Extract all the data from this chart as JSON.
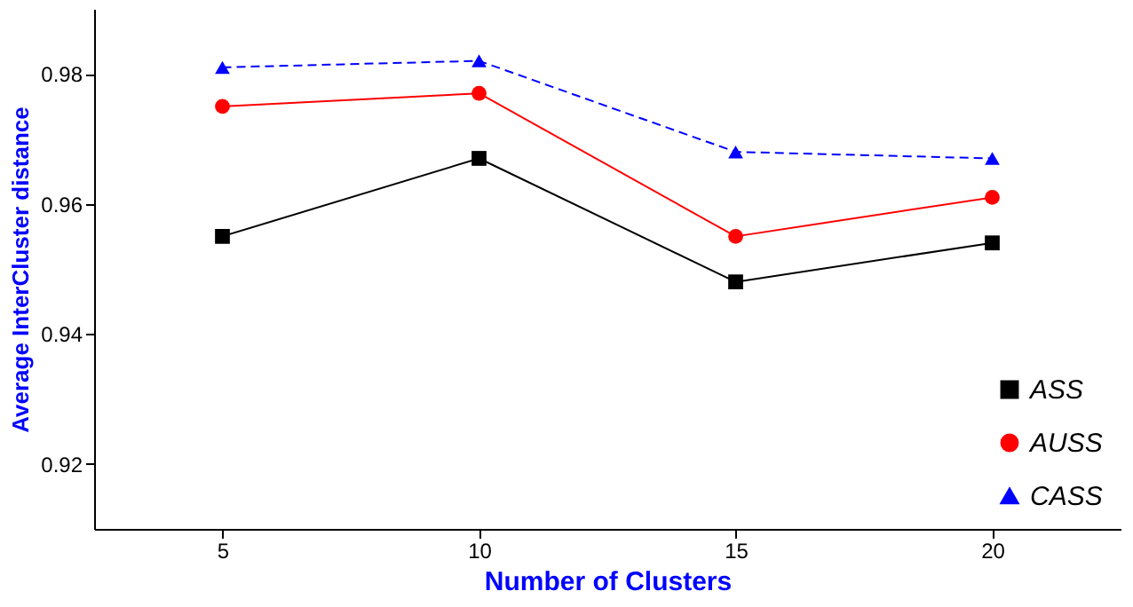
{
  "chart_data": {
    "type": "line",
    "xlabel": "Number of Clusters",
    "ylabel": "Average InterCluster distance",
    "categories": [
      "5",
      "10",
      "15",
      "20"
    ],
    "series": [
      {
        "name": "ASS",
        "color": "#000000",
        "values": [
          0.955,
          0.967,
          0.948,
          0.954
        ],
        "marker": "square",
        "line_style": "solid"
      },
      {
        "name": "AUSS",
        "color": "#ff0000",
        "values": [
          0.975,
          0.977,
          0.955,
          0.961
        ],
        "marker": "circle",
        "line_style": "solid"
      },
      {
        "name": "CASS",
        "color": "#0000ff",
        "values": [
          0.981,
          0.982,
          0.968,
          0.967
        ],
        "marker": "triangle",
        "line_style": "dashed"
      }
    ],
    "ylim": [
      0.91,
      0.99
    ],
    "yticks": [
      0.92,
      0.94,
      0.96,
      0.98
    ],
    "grid": false,
    "legend": "bottom right"
  }
}
